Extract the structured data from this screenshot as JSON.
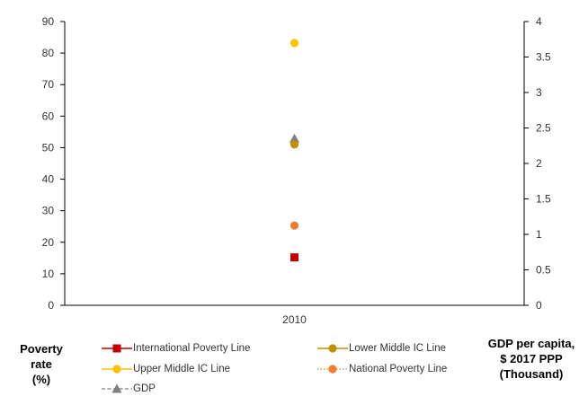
{
  "chart_data": {
    "type": "scatter",
    "categories": [
      "2010"
    ],
    "series": [
      {
        "name": "International Poverty Line",
        "axis": "left",
        "values": [
          15.2
        ],
        "color": "#c00000",
        "marker": "square",
        "line": "solid"
      },
      {
        "name": "Lower Middle IC Line",
        "axis": "left",
        "values": [
          51.0
        ],
        "color": "#bf9000",
        "marker": "circle",
        "line": "solid"
      },
      {
        "name": "Upper Middle IC Line",
        "axis": "left",
        "values": [
          83.2
        ],
        "color": "#ffc000",
        "marker": "circle",
        "line": "solid"
      },
      {
        "name": "National Poverty Line",
        "axis": "left",
        "values": [
          25.3
        ],
        "color": "#ed7d31",
        "marker": "circle",
        "line": "dotted"
      },
      {
        "name": "GDP",
        "axis": "right",
        "values": [
          2.35
        ],
        "color": "#808080",
        "marker": "triangle",
        "line": "dashed"
      }
    ],
    "ylabel": "Poverty rate (%)",
    "ylabel_lines": [
      "Poverty",
      "rate",
      "(%)"
    ],
    "ylim": [
      0,
      90
    ],
    "yticks": [
      "0",
      "10",
      "20",
      "30",
      "40",
      "50",
      "60",
      "70",
      "80",
      "90"
    ],
    "y2label": "GDP per capita, $ 2017 PPP (Thousand)",
    "y2label_lines": [
      "GDP per capita,",
      "$ 2017 PPP",
      "(Thousand)"
    ],
    "y2lim": [
      0,
      4
    ],
    "y2ticks": [
      "0",
      "0.5",
      "1",
      "1.5",
      "2",
      "2.5",
      "3",
      "3.5",
      "4"
    ],
    "grid": false,
    "legend_position": "bottom"
  }
}
